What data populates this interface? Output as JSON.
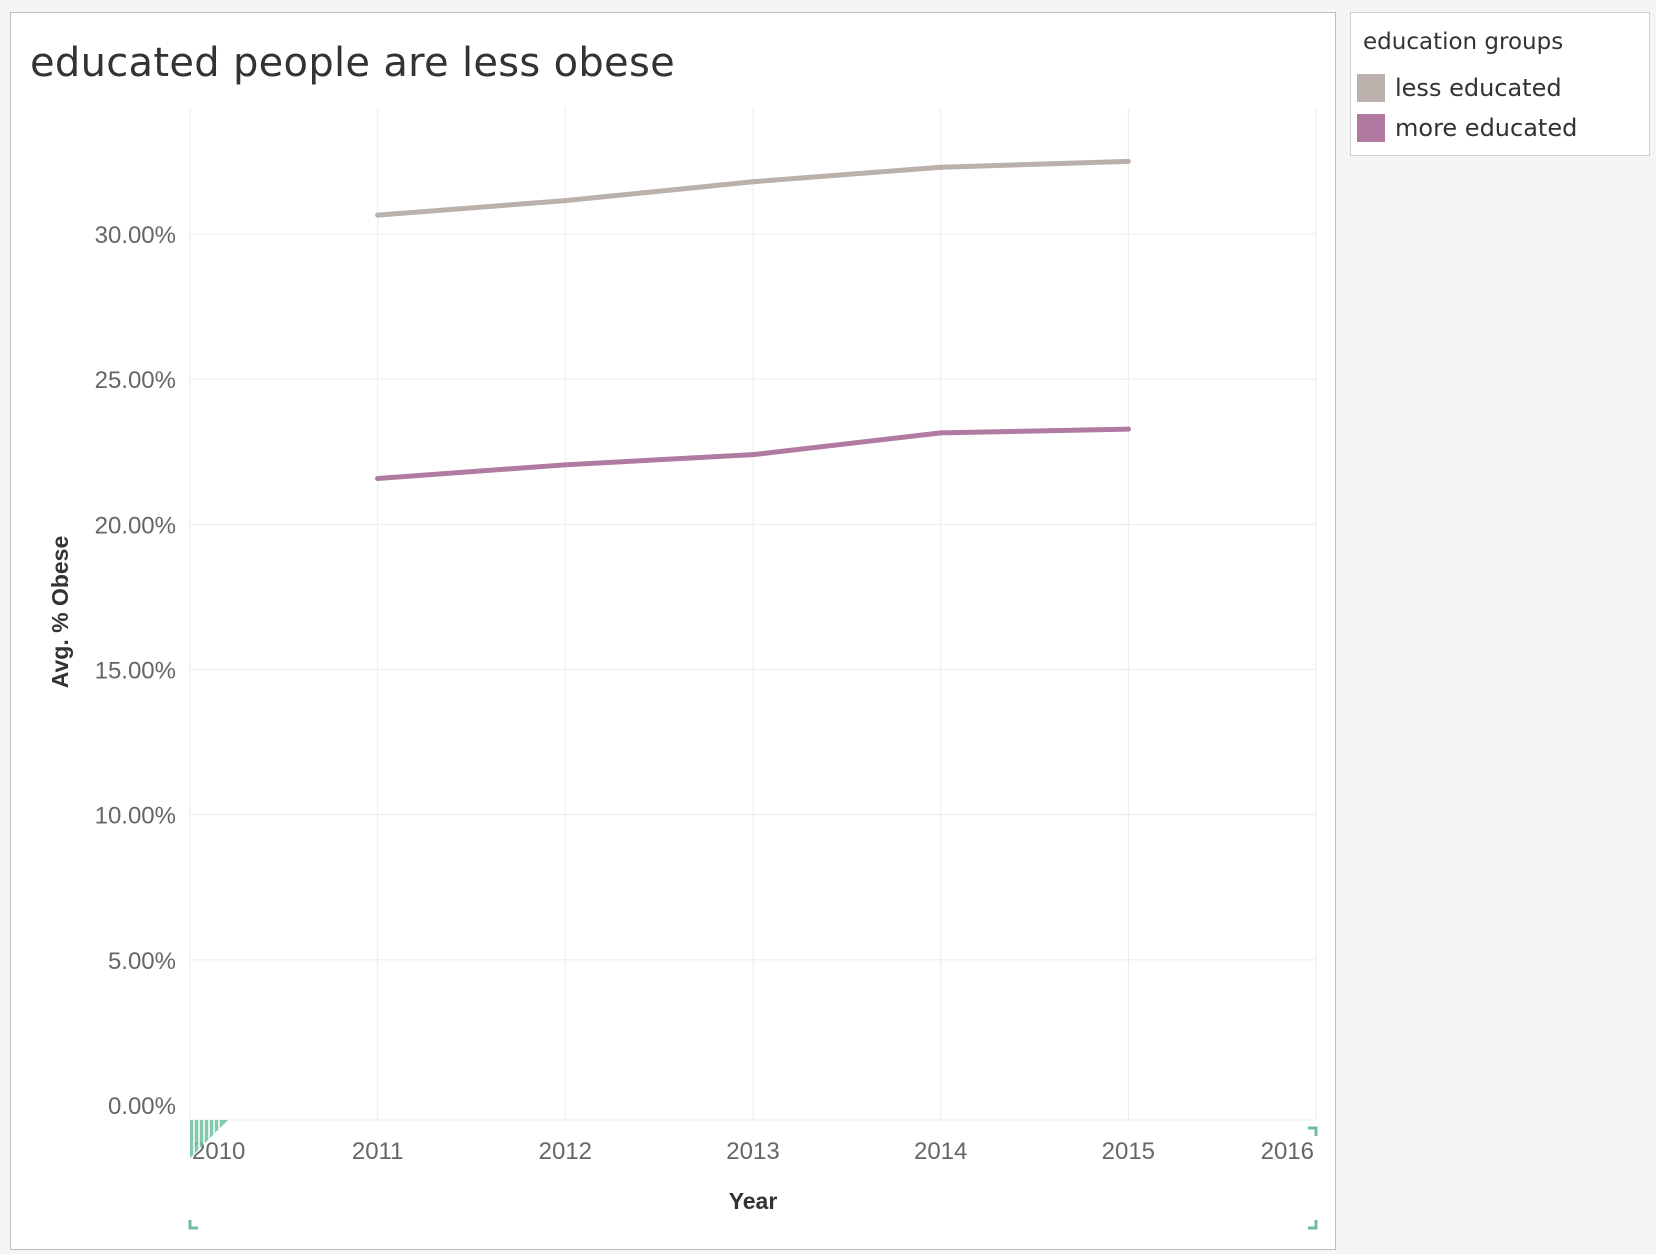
{
  "chart_data": {
    "type": "line",
    "title": "educated people are less obese",
    "xlabel": "Year",
    "ylabel": "Avg. % Obese",
    "x": [
      2011,
      2012,
      2013,
      2014,
      2015
    ],
    "xlim": [
      2010,
      2016
    ],
    "x_ticks": [
      "2010",
      "2011",
      "2012",
      "2013",
      "2014",
      "2015",
      "2016"
    ],
    "ylim": [
      0,
      0.3
    ],
    "y_ticks": [
      "0.00%",
      "5.00%",
      "10.00%",
      "15.00%",
      "20.00%",
      "25.00%",
      "30.00%"
    ],
    "y_tick_values": [
      0,
      0.05,
      0.1,
      0.15,
      0.2,
      0.25,
      0.3
    ],
    "grid": true,
    "legend_position": "right",
    "legend_title": "education groups",
    "series": [
      {
        "name": "less educated",
        "color": "#bab0ac",
        "values": [
          0.3065,
          0.3115,
          0.318,
          0.323,
          0.325
        ]
      },
      {
        "name": "more educated",
        "color": "#b07aa1",
        "values": [
          0.2158,
          0.2205,
          0.224,
          0.2315,
          0.2328
        ]
      }
    ]
  },
  "accent_color": "#6dbf9c"
}
